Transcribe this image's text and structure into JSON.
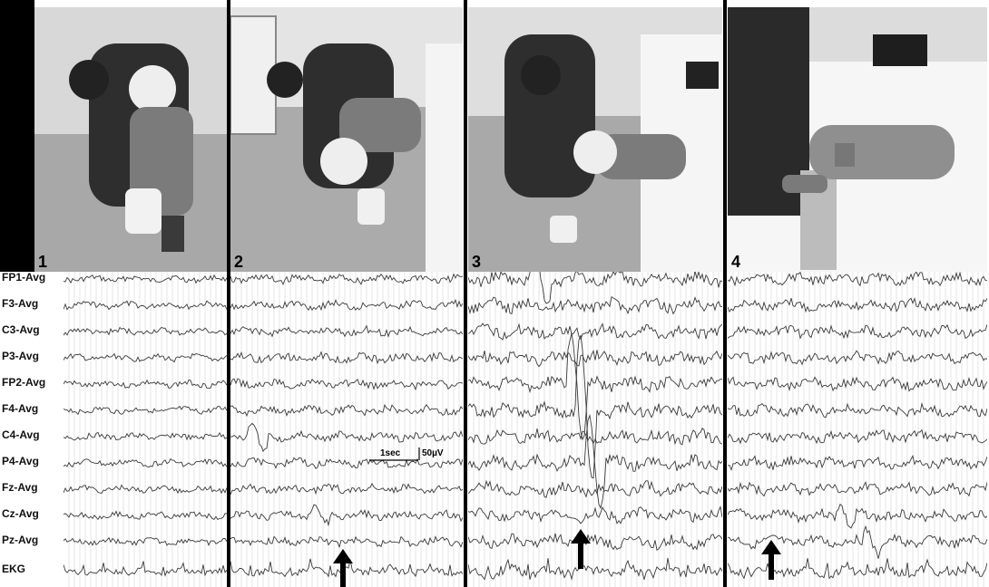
{
  "panels": [
    {
      "number": "1"
    },
    {
      "number": "2"
    },
    {
      "number": "3"
    },
    {
      "number": "4"
    }
  ],
  "channels": [
    "FP1-Avg",
    "F3-Avg",
    "C3-Avg",
    "P3-Avg",
    "FP2-Avg",
    "F4-Avg",
    "C4-Avg",
    "P4-Avg",
    "Fz-Avg",
    "Cz-Avg",
    "Pz-Avg",
    "EKG"
  ],
  "scale": {
    "time": "1sec",
    "amplitude": "50µV"
  },
  "colors": {
    "trace": "#3a3a3a",
    "grid": "#d6d6d6",
    "divider": "#000000"
  }
}
